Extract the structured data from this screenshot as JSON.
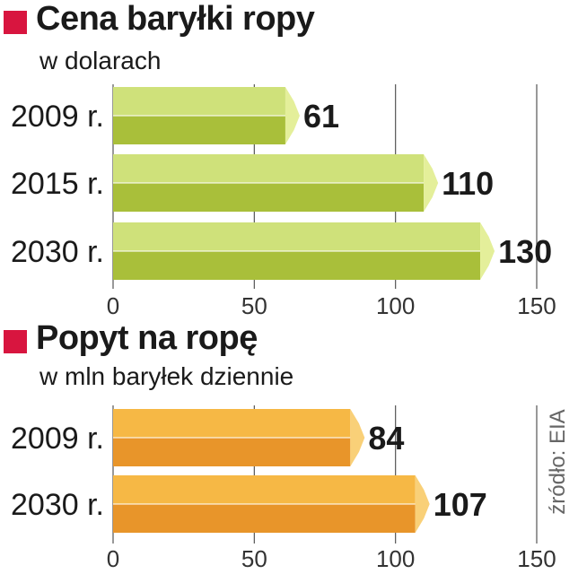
{
  "source": "źródło: EIA",
  "colors": {
    "accent": "#d8153f",
    "green_top": "#cfe17a",
    "green_bottom": "#a9bf3a",
    "green_cap": "#e4ef9a",
    "orange_top": "#f6b845",
    "orange_bottom": "#e8952a",
    "orange_cap": "#f9d078"
  },
  "chart_data": [
    {
      "type": "bar",
      "orientation": "horizontal",
      "title": "Cena baryłki ropy",
      "subtitle": "w dolarach",
      "categories": [
        "2009 r.",
        "2015 r.",
        "2030 r."
      ],
      "values": [
        61,
        110,
        130
      ],
      "xlim": [
        0,
        150
      ],
      "xticks": [
        "0",
        "50",
        "100",
        "150"
      ],
      "grid": true,
      "color": "green"
    },
    {
      "type": "bar",
      "orientation": "horizontal",
      "title": "Popyt na ropę",
      "subtitle": "w mln baryłek dziennie",
      "categories": [
        "2009 r.",
        "2030 r."
      ],
      "values": [
        84,
        107
      ],
      "xlim": [
        0,
        150
      ],
      "xticks": [
        "0",
        "50",
        "100",
        "150"
      ],
      "grid": true,
      "color": "orange"
    }
  ]
}
